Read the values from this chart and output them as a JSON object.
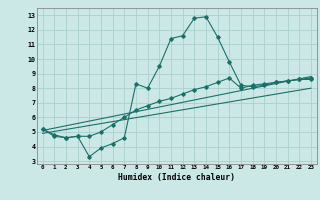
{
  "xlabel": "Humidex (Indice chaleur)",
  "bg_color": "#cce8e6",
  "grid_color": "#aad0cd",
  "line_color": "#1a7068",
  "xlim": [
    -0.5,
    23.5
  ],
  "ylim": [
    2.8,
    13.5
  ],
  "yticks": [
    3,
    4,
    5,
    6,
    7,
    8,
    9,
    10,
    11,
    12,
    13
  ],
  "xticks": [
    0,
    1,
    2,
    3,
    4,
    5,
    6,
    7,
    8,
    9,
    10,
    11,
    12,
    13,
    14,
    15,
    16,
    17,
    18,
    19,
    20,
    21,
    22,
    23
  ],
  "curve1_x": [
    0,
    1,
    2,
    3,
    4,
    5,
    6,
    7,
    8,
    9,
    10,
    11,
    12,
    13,
    14,
    15,
    16,
    17,
    18,
    19,
    20,
    21,
    22,
    23
  ],
  "curve1_y": [
    5.2,
    4.7,
    4.6,
    4.7,
    3.3,
    3.9,
    4.2,
    4.6,
    8.3,
    8.0,
    9.5,
    11.4,
    11.6,
    12.8,
    12.9,
    11.5,
    9.8,
    8.2,
    8.1,
    8.2,
    8.4,
    8.5,
    8.6,
    8.6
  ],
  "curve2_x": [
    0,
    1,
    2,
    3,
    4,
    5,
    6,
    7,
    8,
    9,
    10,
    11,
    12,
    13,
    14,
    15,
    16,
    17,
    18,
    19,
    20,
    21,
    22,
    23
  ],
  "curve2_y": [
    5.2,
    4.8,
    4.6,
    4.7,
    4.7,
    5.0,
    5.5,
    6.0,
    6.5,
    6.8,
    7.1,
    7.3,
    7.6,
    7.9,
    8.1,
    8.4,
    8.7,
    8.0,
    8.2,
    8.3,
    8.4,
    8.5,
    8.6,
    8.7
  ],
  "line3_x": [
    0,
    23
  ],
  "line3_y": [
    5.1,
    8.8
  ],
  "line4_x": [
    0,
    23
  ],
  "line4_y": [
    4.9,
    8.0
  ]
}
